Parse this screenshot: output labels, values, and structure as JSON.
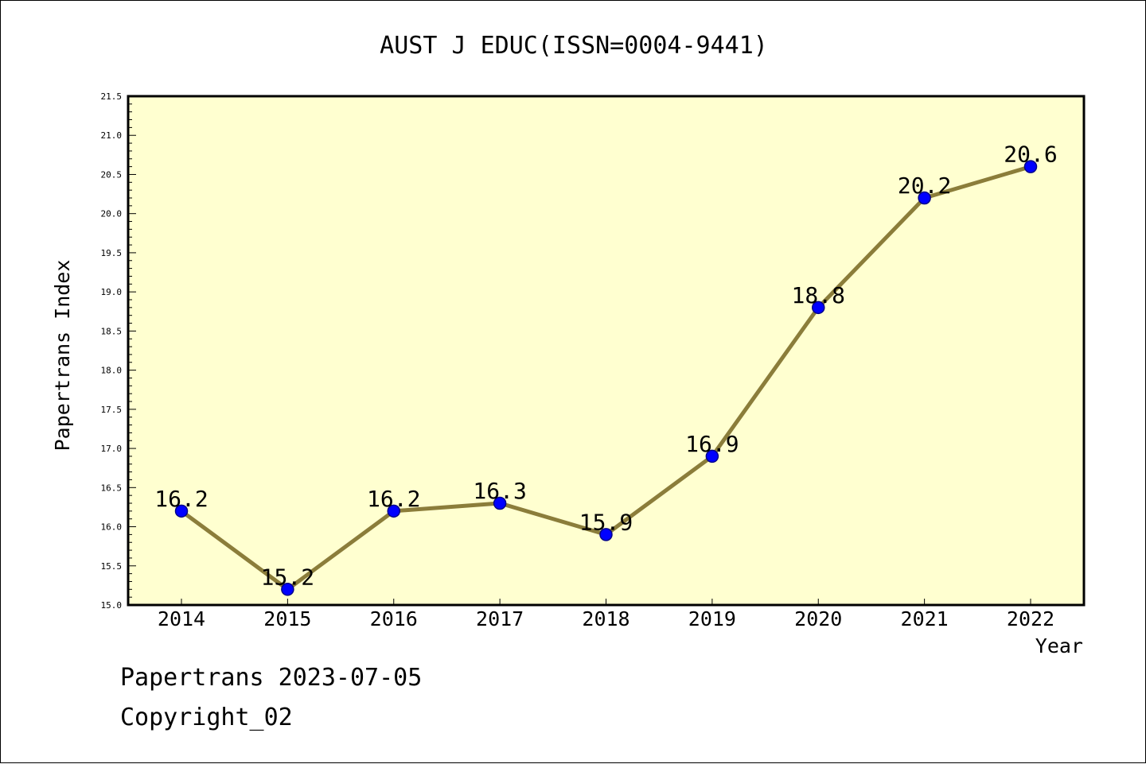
{
  "chart_data": {
    "type": "line",
    "title": "AUST J EDUC(ISSN=0004-9441)",
    "xlabel": "Year",
    "ylabel": "Papertrans Index",
    "categories": [
      "2014",
      "2015",
      "2016",
      "2017",
      "2018",
      "2019",
      "2020",
      "2021",
      "2022"
    ],
    "values": [
      16.2,
      15.2,
      16.2,
      16.3,
      15.9,
      16.9,
      18.8,
      20.2,
      20.6
    ],
    "data_labels": [
      "16.2",
      "15.2",
      "16.2",
      "16.3",
      "15.9",
      "16.9",
      "18.8",
      "20.2",
      "20.6"
    ],
    "ylim": [
      15.0,
      21.5
    ],
    "yticks": [
      "15.0",
      "15.5",
      "16.0",
      "16.5",
      "17.0",
      "17.5",
      "18.0",
      "18.5",
      "19.0",
      "19.5",
      "20.0",
      "20.5",
      "21.0",
      "21.5"
    ],
    "grid": false,
    "legend": "none",
    "colors": {
      "plot_background": "#ffffd0",
      "line": "#8b7d3a",
      "marker": "#0000ff",
      "marker_edge": "#00008b"
    }
  },
  "footer": {
    "line1": "Papertrans 2023-07-05",
    "line2": "Copyright_02"
  }
}
